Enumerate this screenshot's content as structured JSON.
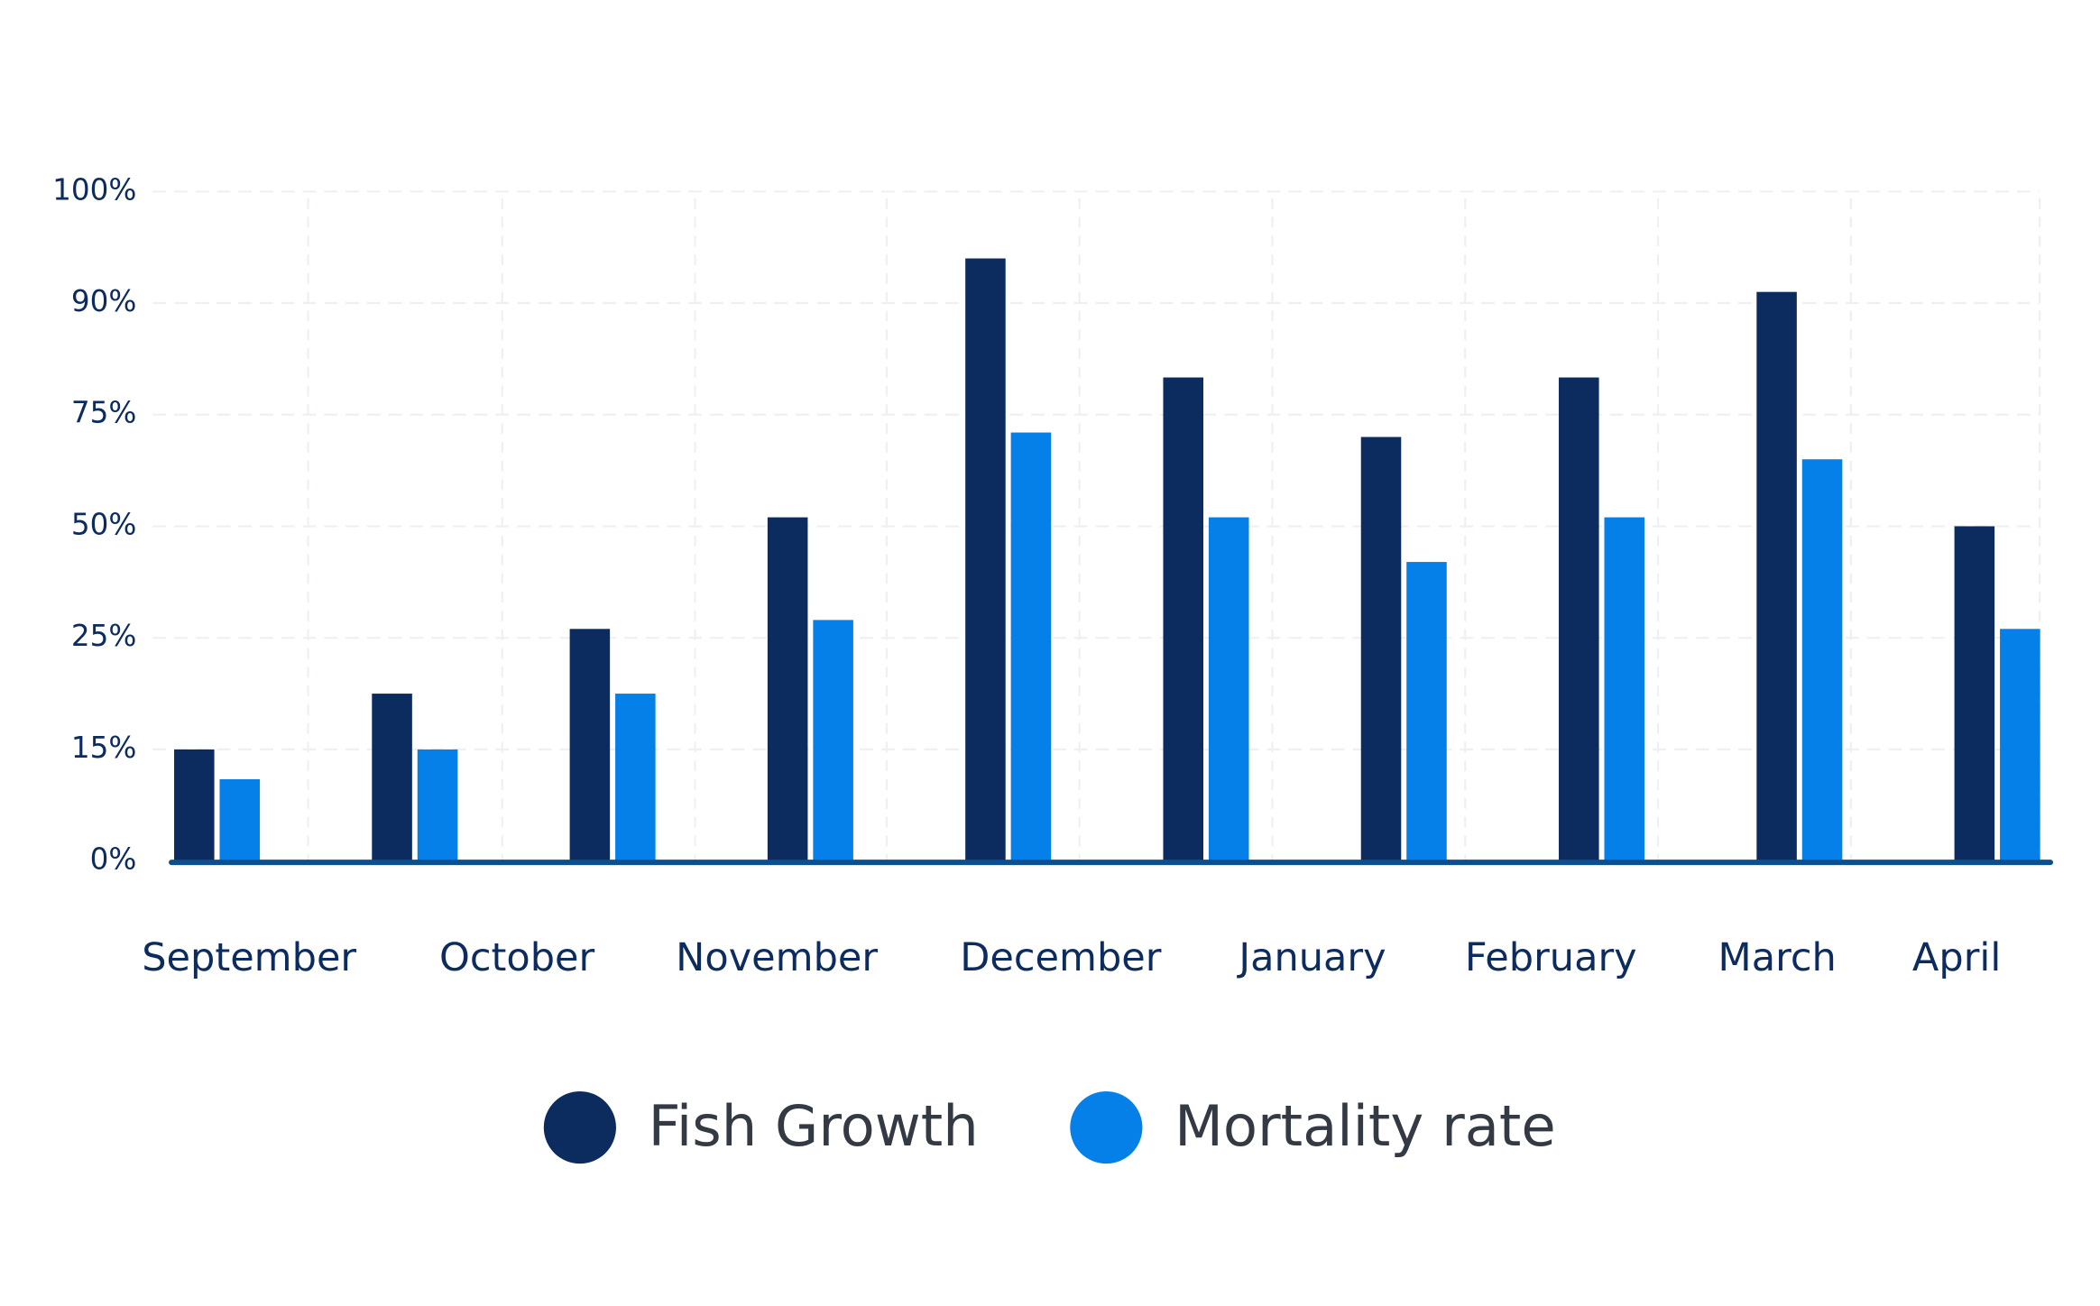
{
  "chart_data": {
    "type": "bar",
    "categories": [
      "September",
      null,
      "October",
      "November",
      "December",
      null,
      "January",
      "February",
      "March",
      "April"
    ],
    "series": [
      {
        "name": "Fish Growth",
        "color": "#0c2b5e",
        "values": [
          15,
          20,
          27,
          52,
          94,
          80,
          70,
          80,
          91,
          50
        ]
      },
      {
        "name": "Mortality rate",
        "color": "#0580e8",
        "values": [
          11,
          15,
          20,
          29,
          71,
          52,
          42,
          52,
          65,
          27
        ]
      }
    ],
    "ylim": [
      0,
      100
    ],
    "yticks": [
      {
        "value": 0,
        "label": "0%"
      },
      {
        "value": 15,
        "label": "15%"
      },
      {
        "value": 25,
        "label": "25%"
      },
      {
        "value": 50,
        "label": "50%"
      },
      {
        "value": 75,
        "label": "75%"
      },
      {
        "value": 90,
        "label": "90%"
      },
      {
        "value": 100,
        "label": "100%"
      }
    ],
    "grid": true
  }
}
